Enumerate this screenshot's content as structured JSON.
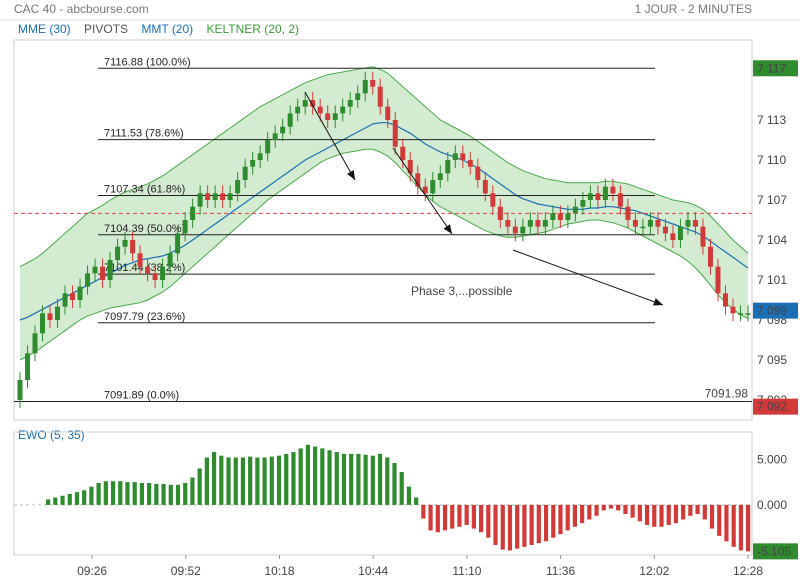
{
  "header": {
    "source": "CAC 40 - abcbourse.com",
    "timeframe": "1 JOUR - 2 MINUTES"
  },
  "legend": [
    {
      "label": "MME (30)",
      "color": "#1a6fb5"
    },
    {
      "label": "PIVOTS",
      "color": "#555555"
    },
    {
      "label": "MMT (20)",
      "color": "#1a6fb5"
    },
    {
      "label": "KELTNER (20, 2)",
      "color": "#3a9a3a"
    }
  ],
  "colors": {
    "up": "#2e8b2e",
    "down": "#d23a3a",
    "band_fill": "#c8e6c4",
    "band_line": "#4aa84a",
    "ema": "#1a6fb5",
    "pivot": "#e04040"
  },
  "chart_data": [
    {
      "type": "candlestick",
      "name": "price",
      "ylim": [
        7090.5,
        7119
      ],
      "yticks": [
        "7 117",
        "7 113",
        "7 110",
        "7 107",
        "7 104",
        "7 101",
        "7 098",
        "7 095",
        "7 092"
      ],
      "xticks": [
        "09:26",
        "09:52",
        "10:18",
        "10:44",
        "11:10",
        "11:36",
        "12:02",
        "12:28"
      ],
      "last_price": "7 099",
      "high_marker": "7 117",
      "low_marker": "7 092",
      "pivot_level": 7106,
      "fibonacci": [
        {
          "value": 7116.88,
          "label": "7116.88  (100.0%)"
        },
        {
          "value": 7111.53,
          "label": "7111.53  (78.6%)"
        },
        {
          "value": 7107.34,
          "label": "7107.34  (61.8%)"
        },
        {
          "value": 7104.39,
          "label": "7104.39  (50.0%)"
        },
        {
          "value": 7101.44,
          "label": "7101.44  (38.2%)"
        },
        {
          "value": 7097.79,
          "label": "7097.79  (23.6%)"
        },
        {
          "value": 7091.89,
          "label": "7091.89  (0.0%)"
        }
      ],
      "low_label": "7091.98",
      "annotation": "Phase 3,...possible",
      "close": [
        7093.5,
        7095.5,
        7097,
        7098.5,
        7098,
        7099,
        7100,
        7099.5,
        7100.5,
        7101.5,
        7102,
        7101,
        7102.5,
        7103.5,
        7104,
        7103,
        7102,
        7101.5,
        7101,
        7102,
        7103,
        7104.5,
        7105.5,
        7106.5,
        7107.5,
        7107,
        7107.5,
        7107,
        7107.5,
        7108.5,
        7109.5,
        7110,
        7110.5,
        7111.5,
        7112,
        7112.5,
        7113.5,
        7114,
        7114.5,
        7114,
        7113.5,
        7113,
        7113.5,
        7114,
        7114.5,
        7115,
        7116,
        7115.5,
        7114,
        7113,
        7111,
        7110,
        7109,
        7108,
        7107.5,
        7108.5,
        7109,
        7110,
        7110.5,
        7110,
        7109.5,
        7108.5,
        7107.5,
        7106.5,
        7105.5,
        7105,
        7104.5,
        7105,
        7105.5,
        7105,
        7105.5,
        7106,
        7105.5,
        7106,
        7106.5,
        7107,
        7107.5,
        7107,
        7108,
        7107.5,
        7106.5,
        7105.5,
        7105,
        7105,
        7105.5,
        7105,
        7104.5,
        7104,
        7105,
        7105.5,
        7105,
        7103.5,
        7102,
        7100,
        7099,
        7098.5,
        7098.5,
        7098.5
      ],
      "open": [
        7092,
        7093.5,
        7095.5,
        7097,
        7098.5,
        7098,
        7099,
        7100,
        7099.5,
        7100.5,
        7101.5,
        7102,
        7101,
        7102.5,
        7103.5,
        7104,
        7103,
        7102,
        7101.5,
        7101,
        7102,
        7103,
        7104.5,
        7105.5,
        7106.5,
        7107.5,
        7107,
        7107.5,
        7107,
        7107.5,
        7108.5,
        7109.5,
        7110,
        7110.5,
        7111.5,
        7112,
        7112.5,
        7113.5,
        7114,
        7114.5,
        7114,
        7113.5,
        7113,
        7113.5,
        7114,
        7114.5,
        7115,
        7116,
        7115.5,
        7114,
        7113,
        7111,
        7110,
        7109,
        7108,
        7107.5,
        7108.5,
        7109,
        7110,
        7110.5,
        7110,
        7109.5,
        7108.5,
        7107.5,
        7106.5,
        7105.5,
        7105,
        7104.5,
        7105,
        7105.5,
        7105,
        7105.5,
        7106,
        7105.5,
        7106,
        7106.5,
        7107,
        7107.5,
        7107,
        7108,
        7107.5,
        7106.5,
        7105.5,
        7105,
        7105,
        7105.5,
        7105,
        7104.5,
        7104,
        7105,
        7105.5,
        7105,
        7103.5,
        7102,
        7100,
        7099,
        7098.5,
        7098.5
      ],
      "upper_band": [
        7102,
        7102.3,
        7102.6,
        7103,
        7103.5,
        7104,
        7104.5,
        7105,
        7105.5,
        7106,
        7106.3,
        7106.6,
        7107,
        7107.3,
        7107.6,
        7107.8,
        7108,
        7108.2,
        7108.5,
        7108.8,
        7109.2,
        7109.6,
        7110,
        7110.4,
        7110.8,
        7111.2,
        7111.6,
        7112,
        7112.4,
        7112.8,
        7113.2,
        7113.6,
        7114,
        7114.3,
        7114.6,
        7114.9,
        7115.2,
        7115.5,
        7115.8,
        7116,
        7116.2,
        7116.4,
        7116.5,
        7116.6,
        7116.7,
        7116.8,
        7116.9,
        7117,
        7116.8,
        7116.5,
        7116,
        7115.5,
        7115,
        7114.5,
        7114,
        7113.5,
        7113,
        7112.7,
        7112.4,
        7112.1,
        7111.8,
        7111.4,
        7111,
        7110.6,
        7110.2,
        7109.8,
        7109.5,
        7109.2,
        7109,
        7108.8,
        7108.6,
        7108.5,
        7108.4,
        7108.3,
        7108.3,
        7108.3,
        7108.3,
        7108.3,
        7108.4,
        7108.4,
        7108.3,
        7108.2,
        7108,
        7107.8,
        7107.6,
        7107.4,
        7107.2,
        7107,
        7106.9,
        7106.8,
        7106.6,
        7106.3,
        7105.8,
        7105.2,
        7104.6,
        7104,
        7103.5,
        7103
      ],
      "lower_band": [
        7095,
        7095.3,
        7095.6,
        7096,
        7096.4,
        7096.8,
        7097.2,
        7097.6,
        7098,
        7098.3,
        7098.5,
        7098.7,
        7098.9,
        7099,
        7099.1,
        7099.2,
        7099.3,
        7099.5,
        7099.8,
        7100.1,
        7100.5,
        7101,
        7101.5,
        7102,
        7102.5,
        7103,
        7103.5,
        7104,
        7104.5,
        7105,
        7105.5,
        7106,
        7106.5,
        7107,
        7107.4,
        7107.8,
        7108.2,
        7108.6,
        7109,
        7109.4,
        7109.8,
        7110.1,
        7110.3,
        7110.5,
        7110.6,
        7110.7,
        7110.8,
        7110.8,
        7110.6,
        7110.3,
        7109.8,
        7109.2,
        7108.6,
        7108,
        7107.4,
        7106.9,
        7106.5,
        7106.2,
        7105.9,
        7105.6,
        7105.3,
        7105,
        7104.7,
        7104.5,
        7104.3,
        7104.2,
        7104.2,
        7104.3,
        7104.4,
        7104.5,
        7104.6,
        7104.8,
        7105,
        7105.2,
        7105.3,
        7105.4,
        7105.5,
        7105.5,
        7105.4,
        7105.3,
        7105.1,
        7104.9,
        7104.6,
        7104.3,
        7104,
        7103.7,
        7103.4,
        7103.1,
        7102.8,
        7102.4,
        7101.9,
        7101.3,
        7100.6,
        7099.9,
        7099.3,
        7098.8,
        7098.4,
        7098.1
      ],
      "ema": [
        7098,
        7098.2,
        7098.5,
        7098.8,
        7099.1,
        7099.4,
        7099.7,
        7100,
        7100.3,
        7100.6,
        7100.9,
        7101.2,
        7101.5,
        7101.8,
        7102.1,
        7102.3,
        7102.5,
        7102.6,
        7102.7,
        7102.8,
        7103,
        7103.3,
        7103.6,
        7104,
        7104.4,
        7104.8,
        7105.2,
        7105.6,
        7106,
        7106.4,
        7106.8,
        7107.2,
        7107.6,
        7108,
        7108.4,
        7108.8,
        7109.2,
        7109.6,
        7110,
        7110.3,
        7110.6,
        7110.9,
        7111.2,
        7111.5,
        7111.8,
        7112.1,
        7112.4,
        7112.7,
        7112.8,
        7112.8,
        7112.6,
        7112.3,
        7112,
        7111.6,
        7111.2,
        7110.9,
        7110.6,
        7110.4,
        7110.2,
        7110,
        7109.7,
        7109.4,
        7109,
        7108.6,
        7108.2,
        7107.8,
        7107.4,
        7107.1,
        7106.9,
        7106.7,
        7106.6,
        7106.5,
        7106.4,
        7106.3,
        7106.3,
        7106.3,
        7106.4,
        7106.4,
        7106.5,
        7106.5,
        7106.4,
        7106.3,
        7106.2,
        7106,
        7105.8,
        7105.6,
        7105.4,
        7105.2,
        7105,
        7104.8,
        7104.6,
        7104.3,
        7103.9,
        7103.5,
        7103.1,
        7102.7,
        7102.3,
        7101.9
      ]
    },
    {
      "type": "bar",
      "name": "EWO (5, 35)",
      "title": "EWO (5, 35)",
      "ylim": [
        -5.5,
        8
      ],
      "yticks": [
        "5.000",
        "0.000"
      ],
      "last_value": "-5.105",
      "values": [
        0.6,
        0.8,
        1.0,
        1.2,
        1.4,
        1.6,
        2.0,
        2.4,
        2.6,
        2.6,
        2.6,
        2.5,
        2.5,
        2.4,
        2.4,
        2.3,
        2.3,
        2.2,
        2.2,
        2.4,
        3.0,
        4.0,
        5.2,
        5.8,
        5.4,
        5.2,
        5.2,
        5.2,
        5.3,
        5.2,
        5.2,
        5.3,
        5.4,
        5.6,
        5.8,
        6.2,
        6.6,
        6.4,
        6.2,
        6.0,
        5.8,
        5.6,
        5.6,
        5.6,
        5.5,
        5.4,
        5.6,
        5.2,
        4.6,
        3.6,
        2.0,
        0.8,
        -1.5,
        -2.8,
        -3.0,
        -2.8,
        -2.6,
        -2.4,
        -2.2,
        -2.6,
        -3.0,
        -3.6,
        -4.4,
        -4.9,
        -5.0,
        -4.8,
        -4.6,
        -4.4,
        -4.2,
        -4.0,
        -3.6,
        -3.2,
        -2.8,
        -2.4,
        -2.0,
        -1.6,
        -1.2,
        -0.6,
        -0.4,
        -0.6,
        -1.0,
        -1.4,
        -1.8,
        -2.2,
        -2.4,
        -2.4,
        -2.2,
        -2.0,
        -1.6,
        -1.2,
        -1.0,
        -1.6,
        -2.6,
        -3.4,
        -4.0,
        -4.6,
        -5.0,
        -5.1
      ]
    }
  ]
}
